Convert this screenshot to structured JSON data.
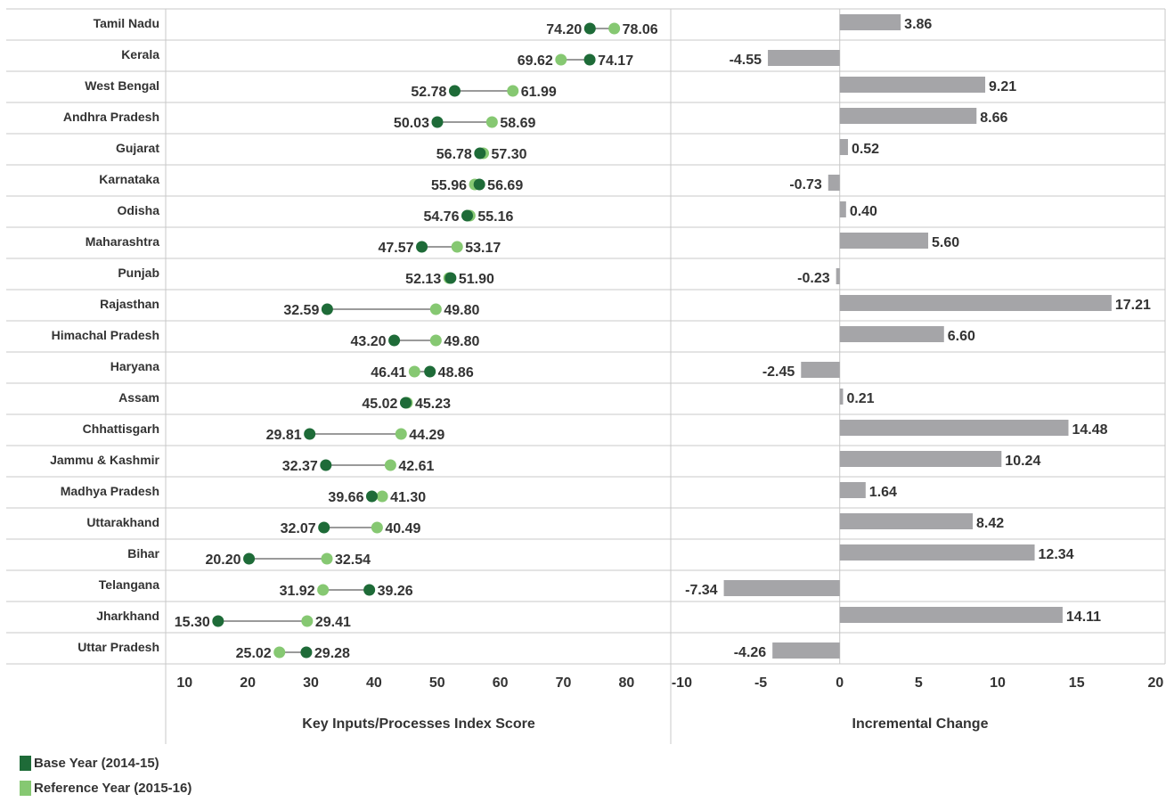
{
  "chart_data": [
    {
      "type": "dumbbell",
      "xlabel": "Key Inputs/Processes Index Score",
      "categories": [
        "Tamil Nadu",
        "Kerala",
        "West Bengal",
        "Andhra Pradesh",
        "Gujarat",
        "Karnataka",
        "Odisha",
        "Maharashtra",
        "Punjab",
        "Rajasthan",
        "Himachal Pradesh",
        "Haryana",
        "Assam",
        "Chhattisgarh",
        "Jammu & Kashmir",
        "Madhya Pradesh",
        "Uttarakhand",
        "Bihar",
        "Telangana",
        "Jharkhand",
        "Uttar Pradesh"
      ],
      "series": [
        {
          "name": "Base Year (2014-15)",
          "color": "#1e6b38",
          "values": [
            74.2,
            74.17,
            52.78,
            50.03,
            56.78,
            56.69,
            54.76,
            47.57,
            52.13,
            32.59,
            43.2,
            48.86,
            45.02,
            29.81,
            32.37,
            39.66,
            32.07,
            20.2,
            39.26,
            15.3,
            29.28
          ]
        },
        {
          "name": "Reference Year (2015-16)",
          "color": "#86c872",
          "values": [
            78.06,
            69.62,
            61.99,
            58.69,
            57.3,
            55.96,
            55.16,
            53.17,
            51.9,
            49.8,
            49.8,
            46.41,
            45.23,
            44.29,
            42.61,
            41.3,
            40.49,
            32.54,
            31.92,
            29.41,
            25.02
          ]
        }
      ],
      "labels": [
        [
          "74.20",
          "78.06"
        ],
        [
          "69.62",
          "74.17"
        ],
        [
          "52.78",
          "61.99"
        ],
        [
          "50.03",
          "58.69"
        ],
        [
          "56.78",
          "57.30"
        ],
        [
          "55.96",
          "56.69"
        ],
        [
          "54.76",
          "55.16"
        ],
        [
          "47.57",
          "53.17"
        ],
        [
          "52.13",
          "51.90"
        ],
        [
          "32.59",
          "49.80"
        ],
        [
          "43.20",
          "49.80"
        ],
        [
          "46.41",
          "48.86"
        ],
        [
          "45.02",
          "45.23"
        ],
        [
          "29.81",
          "44.29"
        ],
        [
          "32.37",
          "42.61"
        ],
        [
          "39.66",
          "41.30"
        ],
        [
          "32.07",
          "40.49"
        ],
        [
          "20.20",
          "32.54"
        ],
        [
          "31.92",
          "39.26"
        ],
        [
          "15.30",
          "29.41"
        ],
        [
          "25.02",
          "29.28"
        ]
      ],
      "xlim": [
        7,
        87
      ],
      "xticks": [
        "10",
        "20",
        "30",
        "40",
        "50",
        "60",
        "70",
        "80"
      ]
    },
    {
      "type": "bar",
      "orientation": "horizontal",
      "xlabel": "Incremental Change",
      "categories": [
        "Tamil Nadu",
        "Kerala",
        "West Bengal",
        "Andhra Pradesh",
        "Gujarat",
        "Karnataka",
        "Odisha",
        "Maharashtra",
        "Punjab",
        "Rajasthan",
        "Himachal Pradesh",
        "Haryana",
        "Assam",
        "Chhattisgarh",
        "Jammu & Kashmir",
        "Madhya Pradesh",
        "Uttarakhand",
        "Bihar",
        "Telangana",
        "Jharkhand",
        "Uttar Pradesh"
      ],
      "values": [
        3.86,
        -4.55,
        9.21,
        8.66,
        0.52,
        -0.73,
        0.4,
        5.6,
        -0.23,
        17.21,
        6.6,
        -2.45,
        0.21,
        14.48,
        10.24,
        1.64,
        8.42,
        12.34,
        -7.34,
        14.11,
        -4.26
      ],
      "labels": [
        "3.86",
        "-4.55",
        "9.21",
        "8.66",
        "0.52",
        "-0.73",
        "0.40",
        "5.60",
        "-0.23",
        "17.21",
        "6.60",
        "-2.45",
        "0.21",
        "14.48",
        "10.24",
        "1.64",
        "8.42",
        "12.34",
        "-7.34",
        "14.11",
        "-4.26"
      ],
      "color": "#a5a5a8",
      "xlim": [
        -10.7,
        20.6
      ],
      "xticks": [
        "-10",
        "-5",
        "0",
        "5",
        "10",
        "15",
        "20"
      ]
    }
  ],
  "legend": [
    {
      "label": "Base Year (2014-15)",
      "color": "#1e6b38"
    },
    {
      "label": "Reference Year (2015-16)",
      "color": "#86c872"
    }
  ]
}
